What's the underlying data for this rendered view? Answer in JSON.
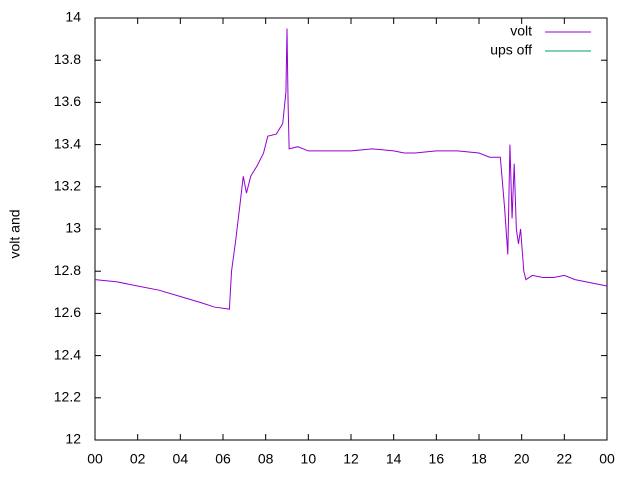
{
  "chart_data": {
    "type": "line",
    "y_label": "volt and",
    "x": [
      0,
      1,
      2,
      3,
      4,
      5,
      5.6,
      6.3,
      6.4,
      6.6,
      6.8,
      6.95,
      7.1,
      7.3,
      7.6,
      7.9,
      8.1,
      8.5,
      8.8,
      8.95,
      9.0,
      9.05,
      9.1,
      9.5,
      10,
      11,
      12,
      13,
      14,
      14.5,
      15,
      16,
      17,
      18,
      18.5,
      19.0,
      19.2,
      19.35,
      19.45,
      19.55,
      19.65,
      19.75,
      19.85,
      19.95,
      20.1,
      20.2,
      20.5,
      21,
      21.5,
      22,
      22.5,
      23,
      23.5,
      24
    ],
    "series": [
      {
        "name": "volt",
        "color": "#9400d3",
        "values": [
          12.76,
          12.75,
          12.73,
          12.71,
          12.68,
          12.65,
          12.63,
          12.62,
          12.8,
          12.95,
          13.12,
          13.25,
          13.17,
          13.25,
          13.3,
          13.36,
          13.44,
          13.45,
          13.5,
          13.65,
          13.95,
          13.6,
          13.38,
          13.39,
          13.37,
          13.37,
          13.37,
          13.38,
          13.37,
          13.36,
          13.36,
          13.37,
          13.37,
          13.36,
          13.34,
          13.34,
          13.1,
          12.88,
          13.4,
          13.05,
          13.31,
          13.0,
          12.93,
          13.0,
          12.8,
          12.76,
          12.78,
          12.77,
          12.77,
          12.78,
          12.76,
          12.75,
          12.74,
          12.73
        ]
      },
      {
        "name": "ups off",
        "color": "#009e73",
        "values": [
          null,
          null,
          null,
          null,
          null,
          null,
          null,
          null,
          null,
          null,
          null,
          null,
          null,
          null,
          null,
          null,
          null,
          null,
          null,
          null,
          null,
          null,
          null,
          null,
          null,
          null,
          null,
          null,
          null,
          null,
          null,
          null,
          null,
          null,
          null,
          null,
          null,
          null,
          null,
          null,
          null,
          null,
          null,
          null,
          null,
          null,
          null,
          null,
          null,
          null,
          null,
          null,
          null,
          null
        ]
      }
    ],
    "xlim": [
      0,
      24
    ],
    "xticks": [
      {
        "value": 0,
        "label": "00"
      },
      {
        "value": 2,
        "label": "02"
      },
      {
        "value": 4,
        "label": "04"
      },
      {
        "value": 6,
        "label": "06"
      },
      {
        "value": 8,
        "label": "08"
      },
      10,
      12,
      14,
      16,
      18,
      20,
      22,
      {
        "value": 24,
        "label": "00"
      }
    ],
    "ylim": [
      12,
      14
    ],
    "yticks": [
      12,
      {
        "value": 12.2,
        "label": "12.2"
      },
      {
        "value": 12.4,
        "label": "12.4"
      },
      {
        "value": 12.6,
        "label": "12.6"
      },
      {
        "value": 12.8,
        "label": "12.8"
      },
      13,
      {
        "value": 13.2,
        "label": "13.2"
      },
      {
        "value": 13.4,
        "label": "13.4"
      },
      {
        "value": 13.6,
        "label": "13.6"
      },
      {
        "value": 13.8,
        "label": "13.8"
      },
      14
    ],
    "legend": "top-right"
  }
}
